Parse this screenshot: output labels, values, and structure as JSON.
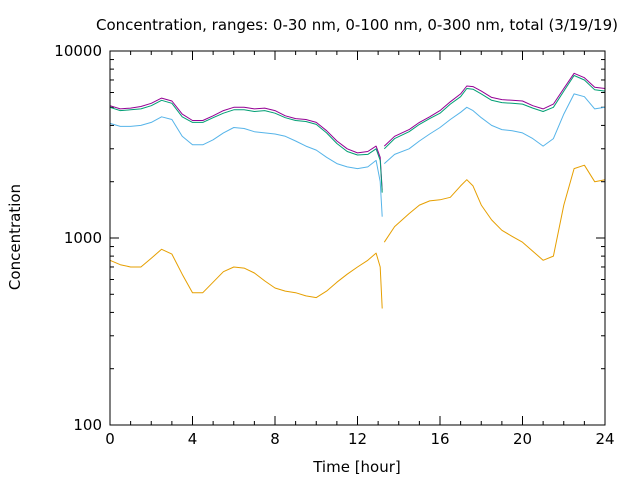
{
  "chart_data": {
    "type": "line",
    "title": "Concentration, ranges: 0-30 nm, 0-100 nm, 0-300 nm, total (3/19/19)",
    "xlabel": "Time [hour]",
    "ylabel": "Concentration",
    "xlim": [
      0,
      24
    ],
    "ylim": [
      100,
      10000
    ],
    "yscale": "log",
    "xticks": [
      "0",
      "4",
      "8",
      "12",
      "16",
      "20",
      "24"
    ],
    "yticks": [
      "100",
      "1000",
      "10000"
    ],
    "grid": false,
    "legend": "none",
    "series": [
      {
        "color": "#940094",
        "segments": [
          [
            [
              0,
              5100
            ],
            [
              0.5,
              4900
            ],
            [
              1,
              4950
            ],
            [
              1.5,
              5050
            ],
            [
              2,
              5250
            ],
            [
              2.5,
              5600
            ],
            [
              3,
              5400
            ],
            [
              3.5,
              4600
            ],
            [
              4,
              4250
            ],
            [
              4.5,
              4250
            ],
            [
              5,
              4500
            ],
            [
              5.5,
              4800
            ],
            [
              6,
              5000
            ],
            [
              6.5,
              5000
            ],
            [
              7,
              4900
            ],
            [
              7.5,
              4950
            ],
            [
              8,
              4800
            ],
            [
              8.5,
              4500
            ],
            [
              9,
              4350
            ],
            [
              9.5,
              4300
            ],
            [
              10,
              4150
            ],
            [
              10.5,
              3750
            ],
            [
              11,
              3300
            ],
            [
              11.5,
              3000
            ],
            [
              12,
              2850
            ],
            [
              12.5,
              2900
            ],
            [
              12.9,
              3100
            ],
            [
              13.1,
              2700
            ],
            [
              13.2,
              1800
            ]
          ],
          [
            [
              13.3,
              3100
            ],
            [
              13.8,
              3500
            ],
            [
              14.5,
              3800
            ],
            [
              15,
              4150
            ],
            [
              15.5,
              4450
            ],
            [
              16,
              4800
            ],
            [
              16.5,
              5350
            ],
            [
              17,
              5900
            ],
            [
              17.3,
              6500
            ],
            [
              17.6,
              6450
            ],
            [
              18,
              6100
            ],
            [
              18.5,
              5650
            ],
            [
              19,
              5500
            ],
            [
              19.5,
              5450
            ],
            [
              20,
              5400
            ],
            [
              20.5,
              5100
            ],
            [
              21,
              4900
            ],
            [
              21.5,
              5200
            ],
            [
              22,
              6300
            ],
            [
              22.5,
              7600
            ],
            [
              23,
              7200
            ],
            [
              23.5,
              6400
            ],
            [
              24,
              6300
            ]
          ]
        ]
      },
      {
        "color": "#009E73",
        "segments": [
          [
            [
              0,
              5000
            ],
            [
              0.5,
              4800
            ],
            [
              1,
              4850
            ],
            [
              1.5,
              4900
            ],
            [
              2,
              5100
            ],
            [
              2.5,
              5450
            ],
            [
              3,
              5250
            ],
            [
              3.5,
              4450
            ],
            [
              4,
              4150
            ],
            [
              4.5,
              4150
            ],
            [
              5,
              4400
            ],
            [
              5.5,
              4650
            ],
            [
              6,
              4850
            ],
            [
              6.5,
              4850
            ],
            [
              7,
              4750
            ],
            [
              7.5,
              4800
            ],
            [
              8,
              4650
            ],
            [
              8.5,
              4400
            ],
            [
              9,
              4250
            ],
            [
              9.5,
              4200
            ],
            [
              10,
              4050
            ],
            [
              10.5,
              3650
            ],
            [
              11,
              3200
            ],
            [
              11.5,
              2900
            ],
            [
              12,
              2780
            ],
            [
              12.5,
              2800
            ],
            [
              12.9,
              3000
            ],
            [
              13.1,
              2600
            ],
            [
              13.2,
              1750
            ]
          ],
          [
            [
              13.3,
              3000
            ],
            [
              13.8,
              3400
            ],
            [
              14.5,
              3700
            ],
            [
              15,
              4050
            ],
            [
              15.5,
              4350
            ],
            [
              16,
              4650
            ],
            [
              16.5,
              5200
            ],
            [
              17,
              5700
            ],
            [
              17.3,
              6300
            ],
            [
              17.6,
              6250
            ],
            [
              18,
              5900
            ],
            [
              18.5,
              5450
            ],
            [
              19,
              5300
            ],
            [
              19.5,
              5250
            ],
            [
              20,
              5200
            ],
            [
              20.5,
              4950
            ],
            [
              21,
              4750
            ],
            [
              21.5,
              5000
            ],
            [
              22,
              6100
            ],
            [
              22.5,
              7400
            ],
            [
              23,
              7000
            ],
            [
              23.5,
              6200
            ],
            [
              24,
              6100
            ]
          ]
        ]
      },
      {
        "color": "#56B4E9",
        "segments": [
          [
            [
              0,
              4100
            ],
            [
              0.5,
              3950
            ],
            [
              1,
              3950
            ],
            [
              1.5,
              4000
            ],
            [
              2,
              4150
            ],
            [
              2.5,
              4450
            ],
            [
              3,
              4300
            ],
            [
              3.5,
              3500
            ],
            [
              4,
              3150
            ],
            [
              4.5,
              3150
            ],
            [
              5,
              3350
            ],
            [
              5.5,
              3650
            ],
            [
              6,
              3900
            ],
            [
              6.5,
              3850
            ],
            [
              7,
              3700
            ],
            [
              7.5,
              3650
            ],
            [
              8,
              3600
            ],
            [
              8.5,
              3500
            ],
            [
              9,
              3300
            ],
            [
              9.5,
              3100
            ],
            [
              10,
              2950
            ],
            [
              10.5,
              2700
            ],
            [
              11,
              2500
            ],
            [
              11.5,
              2400
            ],
            [
              12,
              2350
            ],
            [
              12.5,
              2400
            ],
            [
              12.9,
              2600
            ],
            [
              13.1,
              2000
            ],
            [
              13.2,
              1300
            ]
          ],
          [
            [
              13.3,
              2500
            ],
            [
              13.8,
              2800
            ],
            [
              14.5,
              3000
            ],
            [
              15,
              3300
            ],
            [
              15.5,
              3600
            ],
            [
              16,
              3900
            ],
            [
              16.5,
              4300
            ],
            [
              17,
              4700
            ],
            [
              17.3,
              5000
            ],
            [
              17.6,
              4800
            ],
            [
              18,
              4400
            ],
            [
              18.5,
              4000
            ],
            [
              19,
              3800
            ],
            [
              19.5,
              3750
            ],
            [
              20,
              3650
            ],
            [
              20.5,
              3400
            ],
            [
              21,
              3100
            ],
            [
              21.5,
              3400
            ],
            [
              22,
              4600
            ],
            [
              22.5,
              5900
            ],
            [
              23,
              5700
            ],
            [
              23.5,
              4900
            ],
            [
              24,
              5000
            ]
          ]
        ]
      },
      {
        "color": "#E69F00",
        "segments": [
          [
            [
              0,
              760
            ],
            [
              0.5,
              720
            ],
            [
              1,
              700
            ],
            [
              1.5,
              700
            ],
            [
              2,
              780
            ],
            [
              2.5,
              870
            ],
            [
              3,
              820
            ],
            [
              3.5,
              640
            ],
            [
              4,
              510
            ],
            [
              4.5,
              510
            ],
            [
              5,
              580
            ],
            [
              5.5,
              660
            ],
            [
              6,
              700
            ],
            [
              6.5,
              690
            ],
            [
              7,
              650
            ],
            [
              7.5,
              590
            ],
            [
              8,
              540
            ],
            [
              8.5,
              520
            ],
            [
              9,
              510
            ],
            [
              9.5,
              490
            ],
            [
              10,
              480
            ],
            [
              10.5,
              520
            ],
            [
              11,
              580
            ],
            [
              11.5,
              640
            ],
            [
              12,
              700
            ],
            [
              12.5,
              760
            ],
            [
              12.9,
              830
            ],
            [
              13.1,
              700
            ],
            [
              13.2,
              420
            ]
          ],
          [
            [
              13.3,
              950
            ],
            [
              13.8,
              1150
            ],
            [
              14.5,
              1350
            ],
            [
              15,
              1500
            ],
            [
              15.5,
              1580
            ],
            [
              16,
              1600
            ],
            [
              16.5,
              1650
            ],
            [
              17,
              1900
            ],
            [
              17.3,
              2050
            ],
            [
              17.6,
              1900
            ],
            [
              18,
              1500
            ],
            [
              18.5,
              1250
            ],
            [
              19,
              1100
            ],
            [
              19.5,
              1020
            ],
            [
              20,
              950
            ],
            [
              20.5,
              850
            ],
            [
              21,
              760
            ],
            [
              21.5,
              800
            ],
            [
              22,
              1500
            ],
            [
              22.5,
              2350
            ],
            [
              23,
              2450
            ],
            [
              23.5,
              2000
            ],
            [
              24,
              2050
            ]
          ]
        ]
      }
    ]
  }
}
